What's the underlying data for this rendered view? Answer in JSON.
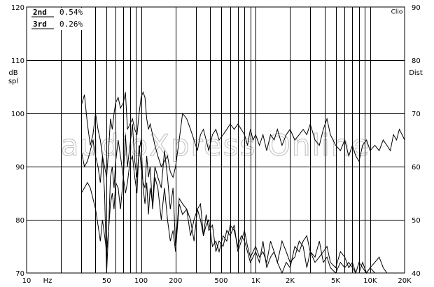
{
  "watermark": "audioXpress Online",
  "chart_data": {
    "type": "line",
    "x_scale": "log",
    "xlim": [
      10,
      20000
    ],
    "ylim_left": [
      70,
      120
    ],
    "ylim_right": [
      40,
      90
    ],
    "left_ylabel": [
      "dB",
      "spl"
    ],
    "right_ylabel": "Dist",
    "right_top_label": "Clio",
    "x_unit_label": "Hz",
    "x_tick_labels": [
      {
        "x": 10,
        "label": "10"
      },
      {
        "x": 50,
        "label": "50"
      },
      {
        "x": 100,
        "label": "100"
      },
      {
        "x": 200,
        "label": "200"
      },
      {
        "x": 500,
        "label": "500"
      },
      {
        "x": 1000,
        "label": "1K"
      },
      {
        "x": 2000,
        "label": "2K"
      },
      {
        "x": 5000,
        "label": "5K"
      },
      {
        "x": 10000,
        "label": "10K"
      },
      {
        "x": 20000,
        "label": "20K"
      }
    ],
    "left_tick_labels": [
      "70",
      "80",
      "90",
      "100",
      "110",
      "120"
    ],
    "right_tick_labels": [
      "40",
      "50",
      "60",
      "70",
      "80",
      "90"
    ],
    "legend": [
      {
        "name": "2nd",
        "value": "0.54%"
      },
      {
        "name": "3rd",
        "value": "0.26%"
      }
    ],
    "series": [
      {
        "id": "fundamental",
        "x": [
          30,
          32,
          34,
          36,
          38,
          40,
          42,
          44,
          46,
          48,
          50,
          52,
          54,
          56,
          58,
          60,
          63,
          66,
          70,
          73,
          76,
          80,
          84,
          88,
          92,
          96,
          100,
          104,
          108,
          112,
          116,
          120,
          126,
          132,
          140,
          150,
          160,
          170,
          180,
          190,
          200,
          215,
          230,
          250,
          270,
          290,
          310,
          330,
          350,
          370,
          390,
          420,
          450,
          480,
          520,
          560,
          600,
          650,
          700,
          750,
          800,
          850,
          900,
          950,
          1000,
          1080,
          1160,
          1250,
          1350,
          1450,
          1550,
          1700,
          1850,
          2000,
          2200,
          2400,
          2600,
          2800,
          3000,
          3300,
          3600,
          3900,
          4200,
          4500,
          5000,
          5500,
          6000,
          6500,
          7000,
          7500,
          8000,
          8600,
          9300,
          10000,
          11000,
          12000,
          13000,
          14000,
          15000,
          16000,
          17000,
          18000,
          19000,
          20000
        ],
        "y": [
          101.5,
          103.5,
          98,
          94,
          96,
          100,
          97,
          95,
          92,
          90,
          88,
          93,
          99,
          97,
          100,
          102,
          103,
          101,
          102,
          104,
          97,
          98,
          99,
          97,
          96,
          100,
          103,
          104,
          103,
          99,
          97,
          98,
          96,
          94,
          92,
          90,
          91,
          92,
          89,
          88,
          90,
          95,
          100,
          99,
          97,
          95,
          93,
          96,
          97,
          95,
          93,
          96,
          97,
          95,
          96,
          97,
          98,
          97,
          98,
          97,
          96,
          94,
          97,
          95,
          96,
          94,
          96,
          93,
          96,
          95,
          97,
          94,
          96,
          97,
          95,
          96,
          97,
          96,
          98,
          95,
          94,
          97,
          99,
          96,
          94,
          93,
          95,
          92,
          94,
          92,
          91,
          94,
          95,
          93,
          94,
          93,
          95,
          94,
          93,
          96,
          95,
          97,
          96,
          95
        ]
      },
      {
        "id": "2nd",
        "x": [
          30,
          32,
          34,
          36,
          38,
          40,
          42,
          44,
          46,
          48,
          50,
          52,
          54,
          56,
          58,
          60,
          63,
          66,
          70,
          73,
          76,
          80,
          84,
          88,
          92,
          96,
          100,
          104,
          108,
          112,
          116,
          120,
          126,
          132,
          140,
          150,
          160,
          170,
          180,
          190,
          200,
          215,
          230,
          250,
          270,
          290,
          310,
          330,
          350,
          370,
          390,
          420,
          450,
          480,
          520,
          560,
          600,
          650,
          700,
          750,
          800,
          850,
          900,
          950,
          1000,
          1080,
          1160,
          1250,
          1350,
          1450,
          1550,
          1700,
          1850,
          2000,
          2200,
          2400,
          2600,
          2800,
          3000,
          3300,
          3600,
          3900,
          4200,
          4500,
          5000,
          5500,
          6000,
          6500,
          7000,
          7500,
          8000,
          8600,
          9300,
          10000,
          11000,
          12000
        ],
        "y": [
          63,
          60,
          61,
          63,
          65,
          62,
          60,
          57,
          62,
          55,
          40,
          48,
          58,
          60,
          56,
          61,
          65,
          62,
          58,
          66,
          60,
          64,
          68,
          61,
          58,
          63,
          65,
          56,
          53,
          57,
          51,
          56,
          53,
          60,
          58,
          56,
          63,
          58,
          52,
          56,
          45,
          54,
          53,
          52,
          50,
          46,
          52,
          53,
          47,
          49,
          50,
          45,
          46,
          44,
          47,
          46,
          49,
          48,
          45,
          47,
          46,
          44,
          42,
          43,
          44,
          42,
          46,
          41,
          43,
          44,
          42,
          40,
          42,
          41,
          45,
          44,
          46,
          47,
          44,
          43,
          46,
          42,
          43,
          41,
          40,
          42,
          41,
          42,
          41,
          40,
          40,
          42,
          40,
          41,
          40,
          40
        ]
      },
      {
        "id": "3rd",
        "x": [
          30,
          32,
          34,
          36,
          38,
          40,
          42,
          44,
          46,
          48,
          50,
          52,
          54,
          56,
          58,
          60,
          63,
          66,
          70,
          73,
          76,
          80,
          84,
          88,
          92,
          96,
          100,
          104,
          108,
          112,
          116,
          120,
          126,
          132,
          140,
          150,
          160,
          170,
          180,
          190,
          200,
          215,
          230,
          250,
          270,
          290,
          310,
          330,
          350,
          370,
          390,
          420,
          450,
          480,
          520,
          560,
          600,
          650,
          700,
          750,
          800,
          850,
          900,
          950,
          1000,
          1080,
          1160,
          1250,
          1350,
          1450,
          1550,
          1700,
          1850,
          2000,
          2200,
          2400,
          2600,
          2800,
          3000,
          3300,
          3600,
          3900,
          4200,
          4500,
          5000,
          5500,
          6000,
          6500,
          7000,
          7500,
          8000,
          8600,
          9300,
          10000,
          11000,
          12000,
          13000,
          14000
        ],
        "y": [
          55,
          56,
          57,
          56,
          54,
          52,
          49,
          46,
          50,
          47,
          44,
          48,
          53,
          55,
          52,
          57,
          56,
          52,
          58,
          55,
          57,
          61,
          62,
          58,
          55,
          64,
          60,
          57,
          56,
          62,
          58,
          60,
          52,
          58,
          56,
          50,
          56,
          50,
          46,
          48,
          44,
          53,
          51,
          52,
          47,
          50,
          52,
          50,
          47,
          51,
          48,
          49,
          44,
          46,
          45,
          48,
          47,
          49,
          44,
          46,
          48,
          45,
          43,
          44,
          45,
          43,
          44,
          42,
          46,
          44,
          42,
          46,
          44,
          42,
          43,
          46,
          45,
          41,
          44,
          42,
          43,
          44,
          45,
          42,
          41,
          44,
          43,
          41,
          42,
          40,
          42,
          41,
          40,
          41,
          42,
          43,
          41,
          40
        ]
      }
    ]
  }
}
